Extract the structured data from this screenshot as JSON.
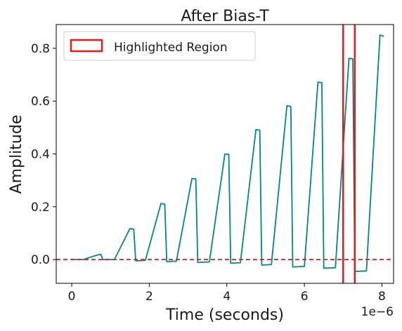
{
  "chart_data": {
    "type": "line",
    "title": "After Bias-T",
    "xlabel": "Time (seconds)",
    "ylabel": "Amplitude",
    "x_offset_label": "1e−6",
    "xlim": [
      -0.4,
      8.3
    ],
    "ylim": [
      -0.09,
      0.89
    ],
    "x_unit_scale": 1e-06,
    "xticks": [
      0,
      2,
      4,
      6,
      8
    ],
    "xtick_labels": [
      "0",
      "2",
      "4",
      "6",
      "8"
    ],
    "yticks": [
      0.0,
      0.2,
      0.4,
      0.6,
      0.8
    ],
    "ytick_labels": [
      "0.0",
      "0.2",
      "0.4",
      "0.6",
      "0.8"
    ],
    "grid": false,
    "legend": {
      "position": "top-left",
      "entries": [
        "Highlighted Region"
      ]
    },
    "series": [
      {
        "color": "#00868b",
        "x": [
          0.0,
          0.3,
          0.65,
          0.75,
          0.8,
          1.1,
          1.5,
          1.6,
          1.65,
          1.9,
          2.3,
          2.4,
          2.45,
          2.7,
          3.1,
          3.2,
          3.25,
          3.55,
          3.95,
          4.05,
          4.1,
          4.35,
          4.75,
          4.85,
          4.9,
          5.15,
          5.55,
          5.65,
          5.7,
          6.0,
          6.35,
          6.45,
          6.5,
          6.8,
          7.15,
          7.25,
          7.3,
          7.6,
          7.95,
          8.05
        ],
        "y": [
          0.0,
          0.0,
          0.017,
          0.02,
          0.0,
          0.0,
          0.117,
          0.115,
          -0.005,
          -0.003,
          0.212,
          0.21,
          -0.008,
          -0.006,
          0.307,
          0.305,
          -0.011,
          -0.009,
          0.4,
          0.398,
          -0.014,
          -0.012,
          0.492,
          0.49,
          -0.021,
          -0.019,
          0.583,
          0.58,
          -0.028,
          -0.026,
          0.672,
          0.67,
          -0.033,
          -0.031,
          0.762,
          0.76,
          -0.045,
          -0.043,
          0.85,
          0.846
        ]
      }
    ],
    "hline": {
      "y": 0.0,
      "color": "#e41a1c",
      "style": "dashed"
    },
    "vlines": [
      {
        "x": 7.0,
        "color": "#e41a1c"
      },
      {
        "x": 7.3,
        "color": "#e41a1c"
      }
    ],
    "colors": {
      "signal": "#00868b",
      "highlight": "#e41a1c",
      "axis": "#000000"
    }
  }
}
